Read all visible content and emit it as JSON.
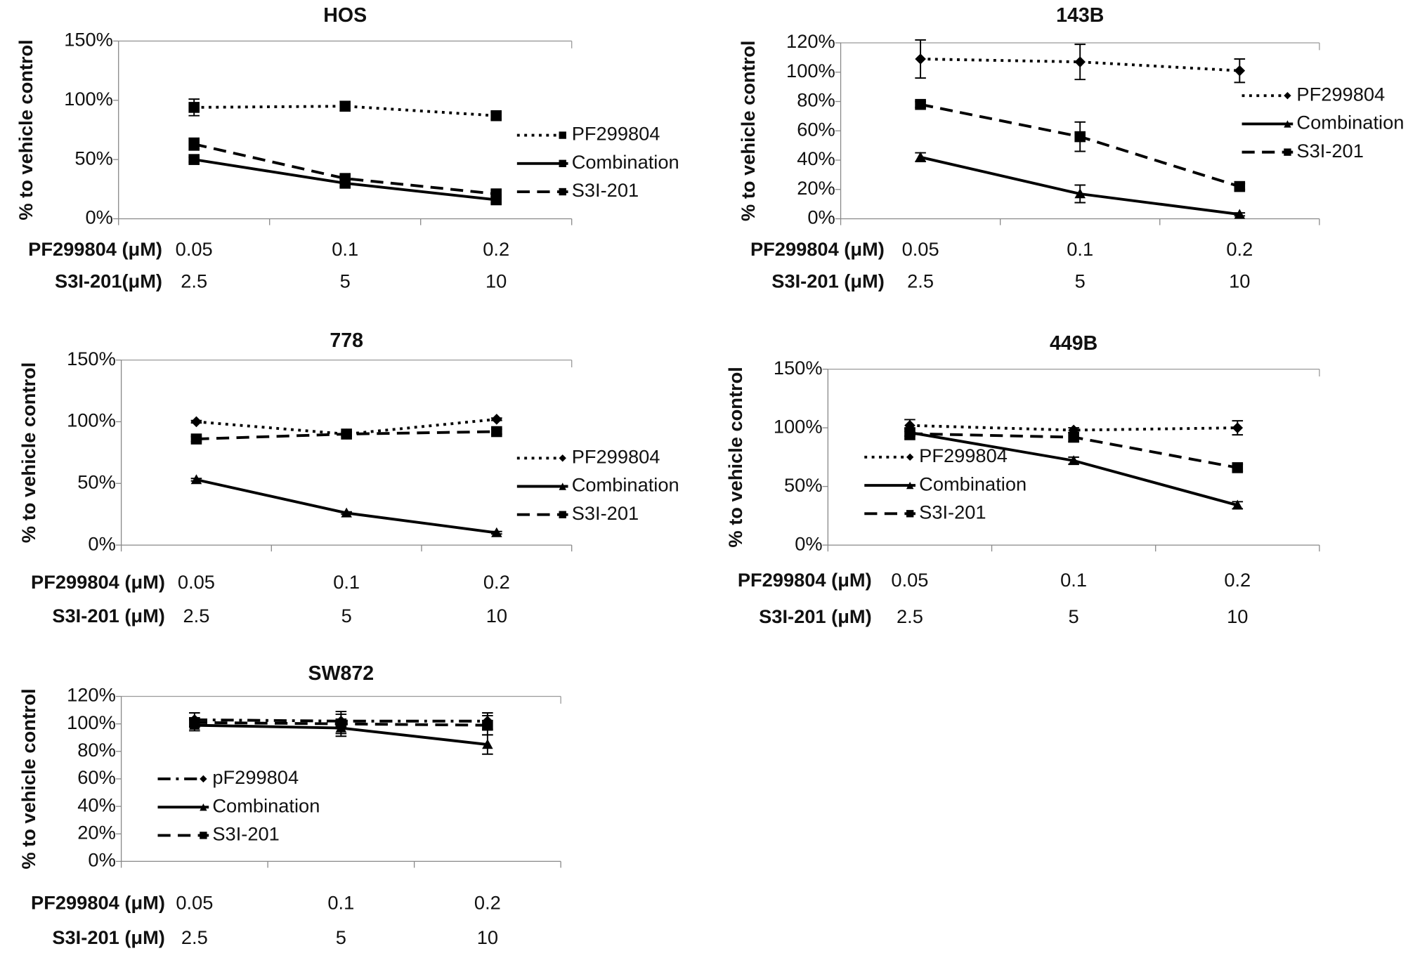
{
  "chart_data": [
    {
      "type": "line",
      "title": "HOS",
      "ylabel": "% to vehicle control",
      "legend": "right",
      "categories": [
        "0.05",
        "0.1",
        "0.2"
      ],
      "x_rows": [
        {
          "label": "PF299804 (μM)",
          "values": [
            "0.05",
            "0.1",
            "0.2"
          ]
        },
        {
          "label": "S3I-201(μM)",
          "values": [
            "2.5",
            "5",
            "10"
          ]
        }
      ],
      "ylim": [
        0,
        150
      ],
      "yticks": [
        {
          "value": 0,
          "label": "0%"
        },
        {
          "value": 50,
          "label": "50%"
        },
        {
          "value": 100,
          "label": "100%"
        },
        {
          "value": 150,
          "label": "150%"
        }
      ],
      "series": [
        {
          "name": "PF299804",
          "color": "#000000",
          "style": "dotted",
          "marker": "square",
          "values": [
            94,
            95,
            87
          ],
          "errors": [
            7,
            4,
            3
          ]
        },
        {
          "name": "Combination",
          "color": "#000000",
          "style": "solid",
          "marker": "square",
          "values": [
            50,
            30,
            16
          ],
          "errors": [
            2,
            3,
            3
          ]
        },
        {
          "name": "S3I-201",
          "color": "#000000",
          "style": "dashed",
          "marker": "square",
          "values": [
            63,
            34,
            21
          ],
          "errors": [
            5,
            3,
            3
          ]
        }
      ]
    },
    {
      "type": "line",
      "title": "143B",
      "ylabel": "% to vehicle control",
      "legend": "upper right",
      "categories": [
        "0.05",
        "0.1",
        "0.2"
      ],
      "x_rows": [
        {
          "label": "PF299804 (μM)",
          "values": [
            "0.05",
            "0.1",
            "0.2"
          ]
        },
        {
          "label": "S3I-201 (μM)",
          "values": [
            "2.5",
            "5",
            "10"
          ]
        }
      ],
      "ylim": [
        0,
        120
      ],
      "yticks": [
        {
          "value": 0,
          "label": "0%"
        },
        {
          "value": 20,
          "label": "20%"
        },
        {
          "value": 40,
          "label": "40%"
        },
        {
          "value": 60,
          "label": "60%"
        },
        {
          "value": 80,
          "label": "80%"
        },
        {
          "value": 100,
          "label": "100%"
        },
        {
          "value": 120,
          "label": "120%"
        }
      ],
      "series": [
        {
          "name": "PF299804",
          "color": "#000000",
          "style": "dotted",
          "marker": "diamond",
          "values": [
            109,
            107,
            101
          ],
          "errors": [
            13,
            12,
            8
          ]
        },
        {
          "name": "Combination",
          "color": "#000000",
          "style": "solid",
          "marker": "triangle",
          "values": [
            42,
            17,
            3
          ],
          "errors": [
            3,
            6,
            1
          ]
        },
        {
          "name": "S3I-201",
          "color": "#000000",
          "style": "dashed",
          "marker": "square",
          "values": [
            78,
            56,
            22
          ],
          "errors": [
            2,
            10,
            2
          ]
        }
      ]
    },
    {
      "type": "line",
      "title": "778",
      "ylabel": "% to vehicle control",
      "legend": "right",
      "categories": [
        "0.05",
        "0.1",
        "0.2"
      ],
      "x_rows": [
        {
          "label": "PF299804 (μM)",
          "values": [
            "0.05",
            "0.1",
            "0.2"
          ]
        },
        {
          "label": "S3I-201 (μM)",
          "values": [
            "2.5",
            "5",
            "10"
          ]
        }
      ],
      "ylim": [
        0,
        150
      ],
      "yticks": [
        {
          "value": 0,
          "label": "0%"
        },
        {
          "value": 50,
          "label": "50%"
        },
        {
          "value": 100,
          "label": "100%"
        },
        {
          "value": 150,
          "label": "150%"
        }
      ],
      "series": [
        {
          "name": "PF299804",
          "color": "#000000",
          "style": "dotted",
          "marker": "diamond",
          "values": [
            100,
            90,
            102
          ],
          "errors": [
            1,
            1,
            1
          ]
        },
        {
          "name": "Combination",
          "color": "#000000",
          "style": "solid",
          "marker": "triangle",
          "values": [
            53,
            26,
            10
          ],
          "errors": [
            1,
            1,
            1
          ]
        },
        {
          "name": "S3I-201",
          "color": "#000000",
          "style": "dashed",
          "marker": "square",
          "values": [
            86,
            90,
            92
          ],
          "errors": [
            2,
            2,
            2
          ]
        }
      ]
    },
    {
      "type": "line",
      "title": "449B",
      "ylabel": "% to vehicle control",
      "legend": "lower left",
      "categories": [
        "0.05",
        "0.1",
        "0.2"
      ],
      "x_rows": [
        {
          "label": "PF299804 (μM)",
          "values": [
            "0.05",
            "0.1",
            "0.2"
          ]
        },
        {
          "label": "S3I-201 (μM)",
          "values": [
            "2.5",
            "5",
            "10"
          ]
        }
      ],
      "ylim": [
        0,
        150
      ],
      "yticks": [
        {
          "value": 0,
          "label": "0%"
        },
        {
          "value": 50,
          "label": "50%"
        },
        {
          "value": 100,
          "label": "100%"
        },
        {
          "value": 150,
          "label": "150%"
        }
      ],
      "series": [
        {
          "name": "PF299804",
          "color": "#000000",
          "style": "dotted",
          "marker": "diamond",
          "values": [
            102,
            98,
            100
          ],
          "errors": [
            5,
            2,
            6
          ]
        },
        {
          "name": "Combination",
          "color": "#000000",
          "style": "solid",
          "marker": "triangle",
          "values": [
            96,
            72,
            34
          ],
          "errors": [
            3,
            3,
            3
          ]
        },
        {
          "name": "S3I-201",
          "color": "#000000",
          "style": "dashed",
          "marker": "square",
          "values": [
            95,
            92,
            66
          ],
          "errors": [
            5,
            4,
            3
          ]
        }
      ]
    },
    {
      "type": "line",
      "title": "SW872",
      "ylabel": "% to vehicle control",
      "legend": "lower left",
      "categories": [
        "0.05",
        "0.1",
        "0.2"
      ],
      "x_rows": [
        {
          "label": "PF299804 (μM)",
          "values": [
            "0.05",
            "0.1",
            "0.2"
          ]
        },
        {
          "label": "S3I-201 (μM)",
          "values": [
            "2.5",
            "5",
            "10"
          ]
        }
      ],
      "ylim": [
        0,
        120
      ],
      "yticks": [
        {
          "value": 0,
          "label": "0%"
        },
        {
          "value": 20,
          "label": "20%"
        },
        {
          "value": 40,
          "label": "40%"
        },
        {
          "value": 60,
          "label": "60%"
        },
        {
          "value": 80,
          "label": "80%"
        },
        {
          "value": 100,
          "label": "100%"
        },
        {
          "value": 120,
          "label": "120%"
        }
      ],
      "series": [
        {
          "name": "pF299804",
          "color": "#000000",
          "style": "dashdot",
          "marker": "diamond",
          "values": [
            103,
            102,
            102
          ],
          "errors": [
            5,
            5,
            6
          ]
        },
        {
          "name": "Combination",
          "color": "#000000",
          "style": "solid",
          "marker": "triangle",
          "values": [
            99,
            97,
            85
          ],
          "errors": [
            4,
            4,
            7
          ]
        },
        {
          "name": "S3I-201",
          "color": "#000000",
          "style": "dashed",
          "marker": "square",
          "values": [
            101,
            100,
            99
          ],
          "errors": [
            3,
            9,
            7
          ]
        }
      ]
    }
  ]
}
